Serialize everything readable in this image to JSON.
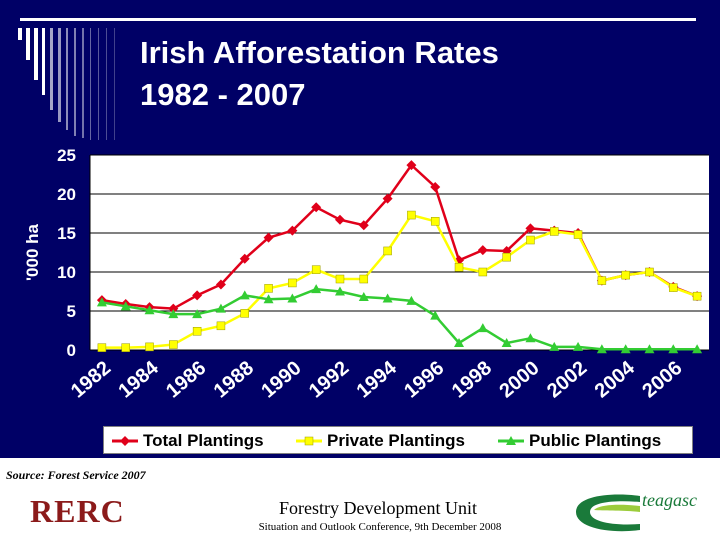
{
  "slide": {
    "title_line1": "Irish Afforestation Rates",
    "title_line2": "1982 - 2007",
    "source": "Source: Forest Service 2007",
    "footer_unit": "Forestry Development Unit",
    "footer_conference": "Situation and Outlook Conference, 9th December 2008",
    "left_logo_text": "RERC",
    "right_logo_text": "teagasc"
  },
  "colors": {
    "background": "#000066",
    "title": "#ffffff",
    "plot_area": "#ffffff",
    "gridline": "#000000",
    "total": "#e0001a",
    "private": "#ffff00",
    "public": "#33cc33"
  },
  "chart_data": {
    "type": "line",
    "ylabel": "'000 ha",
    "xlabel": "",
    "ylim": [
      0,
      25
    ],
    "yticks": [
      0,
      5,
      10,
      15,
      20,
      25
    ],
    "grid": true,
    "legend_placement": "bottom",
    "x": [
      1982,
      1983,
      1984,
      1985,
      1986,
      1987,
      1988,
      1989,
      1990,
      1991,
      1992,
      1993,
      1994,
      1995,
      1996,
      1997,
      1998,
      1999,
      2000,
      2001,
      2002,
      2003,
      2004,
      2005,
      2006,
      2007
    ],
    "x_tick_labels": [
      "1982",
      "1984",
      "1986",
      "1988",
      "1990",
      "1992",
      "1994",
      "1996",
      "1998",
      "2000",
      "2002",
      "2004",
      "2006"
    ],
    "series": [
      {
        "name": "Total Plantings",
        "marker": "diamond",
        "color": "#e0001a",
        "values": [
          6.4,
          5.9,
          5.5,
          5.3,
          7.0,
          8.4,
          11.7,
          14.4,
          15.3,
          18.3,
          16.7,
          16.0,
          19.4,
          23.7,
          20.9,
          11.5,
          12.8,
          12.7,
          15.6,
          15.3,
          15.0,
          8.9,
          9.6,
          10.0,
          8.1,
          6.9
        ]
      },
      {
        "name": "Private Plantings",
        "marker": "square",
        "color": "#ffff00",
        "values": [
          0.3,
          0.3,
          0.4,
          0.7,
          2.4,
          3.1,
          4.7,
          7.9,
          8.6,
          10.3,
          9.1,
          9.1,
          12.7,
          17.3,
          16.5,
          10.6,
          10.0,
          11.9,
          14.1,
          15.2,
          14.8,
          8.9,
          9.6,
          10.0,
          8.0,
          6.9
        ]
      },
      {
        "name": "Public Plantings",
        "marker": "triangle",
        "color": "#33cc33",
        "values": [
          6.1,
          5.6,
          5.1,
          4.6,
          4.6,
          5.3,
          7.0,
          6.5,
          6.6,
          7.8,
          7.5,
          6.8,
          6.6,
          6.3,
          4.4,
          0.9,
          2.8,
          0.9,
          1.5,
          0.4,
          0.4,
          0.1,
          0.1,
          0.1,
          0.1,
          0.1
        ]
      }
    ]
  }
}
